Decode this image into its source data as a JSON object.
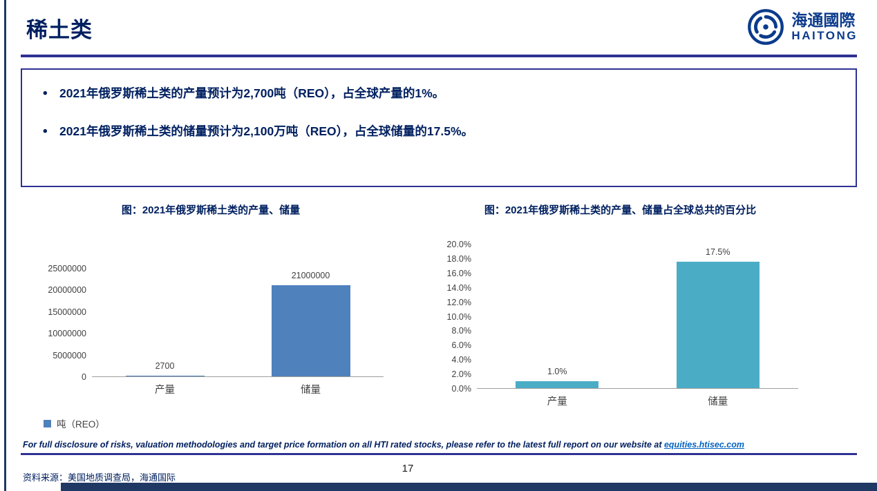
{
  "colors": {
    "navy_text": "#002060",
    "line_blue": "#2E3192",
    "logo_blue": "#0B3B8C",
    "bar_blue": "#4F81BD",
    "bar_teal": "#4BACC6",
    "bottom_bar": "#203864",
    "axis_text": "#404040",
    "link_blue": "#0563C1"
  },
  "header": {
    "title": "稀土类",
    "logo_cn": "海通國際",
    "logo_en": "HAITONG"
  },
  "summary": {
    "bullets": [
      "2021年俄罗斯稀土类的产量预计为2,700吨（REO），占全球产量的1%。",
      "2021年俄罗斯稀土类的储量预计为2,100万吨（REO），占全球储量的17.5%。"
    ]
  },
  "chart_data": [
    {
      "type": "bar",
      "title": "图：2021年俄罗斯稀土类的产量、储量",
      "categories": [
        "产量",
        "储量"
      ],
      "values": [
        2700,
        21000000
      ],
      "data_labels": [
        "2700",
        "21000000"
      ],
      "ylim": [
        0,
        25000000
      ],
      "yticks": [
        "25000000",
        "20000000",
        "15000000",
        "10000000",
        "5000000",
        "0"
      ],
      "legend": [
        "吨（REO）"
      ],
      "legend_position": "bottom-left",
      "bar_color": "#4F81BD",
      "grid": false
    },
    {
      "type": "bar",
      "title": "图：2021年俄罗斯稀土类的产量、储量占全球总共的百分比",
      "categories": [
        "产量",
        "储量"
      ],
      "values": [
        1.0,
        17.5
      ],
      "data_labels": [
        "1.0%",
        "17.5%"
      ],
      "ylim": [
        0,
        20
      ],
      "yticks": [
        "20.0%",
        "18.0%",
        "16.0%",
        "14.0%",
        "12.0%",
        "10.0%",
        "8.0%",
        "6.0%",
        "4.0%",
        "2.0%",
        "0.0%"
      ],
      "legend": [],
      "bar_color": "#4BACC6",
      "grid": false
    }
  ],
  "footer": {
    "disclaimer_prefix": "For full disclosure of risks, valuation methodologies and target price formation on all HTI rated stocks, please refer to the latest full report on our website at ",
    "disclaimer_link": "equities.htisec.com",
    "source": "资料来源：美国地质调查局，海通国际",
    "page_number": "17"
  }
}
